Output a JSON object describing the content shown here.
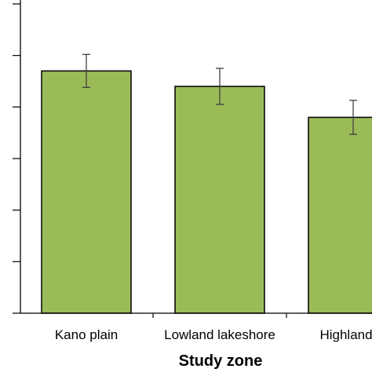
{
  "chart_data": {
    "type": "bar",
    "title": "",
    "xlabel": "Study zone",
    "ylabel": "",
    "categories": [
      "Kano plain",
      "Lowland lakeshore",
      "Highland pl"
    ],
    "values": [
      4.7,
      4.4,
      3.8
    ],
    "error": [
      0.32,
      0.35,
      0.33
    ],
    "ylim": [
      0,
      6
    ],
    "yticks": [
      0,
      1,
      2,
      3,
      4,
      5,
      6
    ],
    "grid": false,
    "legend": "none",
    "colors": {
      "bar_fill": "#9bbb59",
      "bar_edge": "#000000",
      "axis": "#000000",
      "error_bar": "#404040"
    }
  }
}
